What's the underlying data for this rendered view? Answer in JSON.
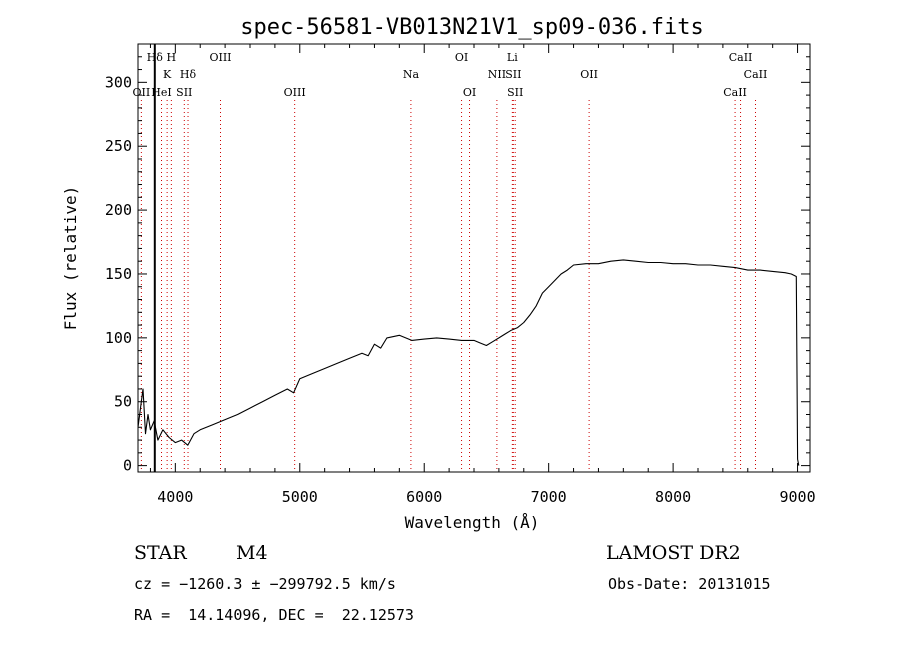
{
  "chart_data": {
    "type": "line",
    "title": "spec-56581-VB013N21V1_sp09-036.fits",
    "xlabel": "Wavelength (Å)",
    "ylabel": "Flux (relative)",
    "xlim": [
      3700,
      9100
    ],
    "ylim": [
      -5,
      330
    ],
    "x_ticks": [
      4000,
      5000,
      6000,
      7000,
      8000,
      9000
    ],
    "x_tick_labels": [
      "4000",
      "5000",
      "6000",
      "7000",
      "8000",
      "9000"
    ],
    "y_ticks": [
      0,
      50,
      100,
      150,
      200,
      250,
      300
    ],
    "y_tick_labels": [
      "0",
      "50",
      "100",
      "150",
      "200",
      "250",
      "300"
    ],
    "grid": false,
    "series": [
      {
        "color": "#000000",
        "x": [
          3700,
          3720,
          3740,
          3760,
          3780,
          3800,
          3830,
          3860,
          3900,
          3950,
          4000,
          4050,
          4100,
          4150,
          4200,
          4300,
          4400,
          4500,
          4600,
          4700,
          4800,
          4900,
          4950,
          5000,
          5100,
          5200,
          5300,
          5400,
          5500,
          5550,
          5600,
          5650,
          5700,
          5800,
          5900,
          6000,
          6100,
          6200,
          6300,
          6400,
          6450,
          6500,
          6550,
          6600,
          6650,
          6700,
          6750,
          6800,
          6850,
          6900,
          6950,
          7000,
          7050,
          7100,
          7150,
          7200,
          7300,
          7400,
          7500,
          7600,
          7700,
          7800,
          7900,
          8000,
          8100,
          8200,
          8300,
          8400,
          8500,
          8600,
          8700,
          8800,
          8900,
          8950,
          8990,
          9000,
          9010
        ],
        "y": [
          30,
          45,
          60,
          25,
          40,
          28,
          35,
          20,
          28,
          22,
          18,
          20,
          16,
          25,
          28,
          32,
          36,
          40,
          45,
          50,
          55,
          60,
          57,
          68,
          72,
          76,
          80,
          84,
          88,
          86,
          95,
          92,
          100,
          102,
          98,
          99,
          100,
          99,
          98,
          98,
          96,
          94,
          97,
          100,
          103,
          106,
          108,
          112,
          118,
          125,
          135,
          140,
          145,
          150,
          153,
          157,
          158,
          158,
          160,
          161,
          160,
          159,
          159,
          158,
          158,
          157,
          157,
          156,
          155,
          153,
          153,
          152,
          151,
          150,
          148,
          5,
          0
        ]
      }
    ],
    "line_markers": [
      {
        "label": "Hδ",
        "x": 3835,
        "row": 1,
        "color": "#000000",
        "solid": true
      },
      {
        "label": "H",
        "x": 3968,
        "row": 1,
        "color": "#cc0000",
        "solid": false
      },
      {
        "label": "K",
        "x": 3934,
        "row": 2,
        "color": "#cc0000",
        "solid": false
      },
      {
        "label": "Hδ",
        "x": 4102,
        "row": 2,
        "color": "#cc0000",
        "solid": false
      },
      {
        "label": "OII",
        "x": 3727,
        "row": 3,
        "color": "#cc0000",
        "solid": false
      },
      {
        "label": "HeI",
        "x": 3889,
        "row": 3,
        "color": "#cc0000",
        "solid": false
      },
      {
        "label": "SII",
        "x": 4072,
        "row": 3,
        "color": "#cc0000",
        "solid": false
      },
      {
        "label": "OIII",
        "x": 4363,
        "row": 1,
        "color": "#cc0000",
        "solid": false
      },
      {
        "label": "OIII",
        "x": 4959,
        "row": 3,
        "color": "#cc0000",
        "solid": false
      },
      {
        "label": "Na",
        "x": 5893,
        "row": 2,
        "color": "#cc0000",
        "solid": false
      },
      {
        "label": "OI",
        "x": 6300,
        "row": 1,
        "color": "#cc0000",
        "solid": false
      },
      {
        "label": "OI",
        "x": 6364,
        "row": 3,
        "color": "#cc0000",
        "solid": false
      },
      {
        "label": "Li",
        "x": 6708,
        "row": 1,
        "color": "#cc0000",
        "solid": false
      },
      {
        "label": "NII",
        "x": 6584,
        "row": 2,
        "color": "#cc0000",
        "solid": false
      },
      {
        "label": "SII",
        "x": 6716,
        "row": 2,
        "color": "#cc0000",
        "solid": false
      },
      {
        "label": "SII",
        "x": 6731,
        "row": 3,
        "color": "#cc0000",
        "solid": false
      },
      {
        "label": "OII",
        "x": 7325,
        "row": 2,
        "color": "#cc0000",
        "solid": false
      },
      {
        "label": "CaII",
        "x": 8542,
        "row": 1,
        "color": "#cc0000",
        "solid": false
      },
      {
        "label": "CaII",
        "x": 8662,
        "row": 2,
        "color": "#cc0000",
        "solid": false
      },
      {
        "label": "CaII",
        "x": 8498,
        "row": 3,
        "color": "#cc0000",
        "solid": false
      }
    ]
  },
  "info": {
    "class_label": "STAR",
    "subclass_label": "M4",
    "survey_label": "LAMOST DR2",
    "cz_line": "cz = −1260.3 ± −299792.5 km/s",
    "obs_date_line": "Obs-Date: 20131015",
    "radec_line": "RA =  14.14096, DEC =  22.12573"
  }
}
